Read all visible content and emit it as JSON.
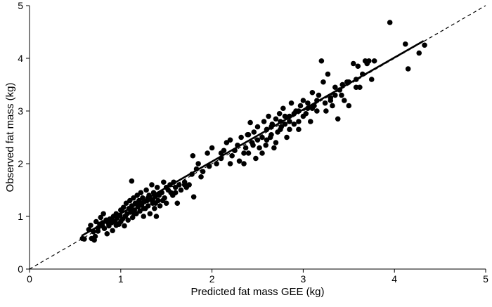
{
  "chart_data": {
    "type": "scatter",
    "title": "",
    "xlabel": "Predicted fat mass GEE (kg)",
    "ylabel": "Observed fat mass (kg)",
    "xlim": [
      0,
      5
    ],
    "ylim": [
      0,
      5
    ],
    "xticks": [
      "0",
      "1",
      "2",
      "3",
      "4",
      "5"
    ],
    "yticks": [
      "0",
      "1",
      "2",
      "3",
      "4",
      "5"
    ],
    "grid": false,
    "legend": "none",
    "point_color": "#000000",
    "reference_line": {
      "style": "dashed",
      "x": [
        0,
        5
      ],
      "y": [
        0,
        5
      ]
    },
    "fit_line": {
      "style": "solid",
      "x": [
        0.57,
        4.32
      ],
      "y": [
        0.63,
        4.33
      ]
    },
    "points": [
      [
        0.58,
        0.58
      ],
      [
        0.6,
        0.57
      ],
      [
        0.65,
        0.75
      ],
      [
        0.67,
        0.83
      ],
      [
        0.68,
        0.58
      ],
      [
        0.7,
        0.71
      ],
      [
        0.71,
        0.55
      ],
      [
        0.72,
        0.62
      ],
      [
        0.73,
        0.9
      ],
      [
        0.75,
        0.78
      ],
      [
        0.77,
        0.85
      ],
      [
        0.78,
        0.98
      ],
      [
        0.8,
        0.88
      ],
      [
        0.81,
        1.05
      ],
      [
        0.82,
        0.77
      ],
      [
        0.84,
        0.93
      ],
      [
        0.85,
        0.67
      ],
      [
        0.87,
        0.82
      ],
      [
        0.88,
        0.95
      ],
      [
        0.9,
        0.88
      ],
      [
        0.91,
        0.73
      ],
      [
        0.92,
        1.0
      ],
      [
        0.94,
        0.9
      ],
      [
        0.95,
        0.83
      ],
      [
        0.96,
        0.97
      ],
      [
        0.98,
        0.85
      ],
      [
        0.99,
        1.02
      ],
      [
        1.0,
        0.9
      ],
      [
        1.01,
        1.1
      ],
      [
        1.02,
        0.95
      ],
      [
        1.03,
        1.17
      ],
      [
        1.04,
        0.82
      ],
      [
        1.05,
        1.0
      ],
      [
        1.06,
        1.25
      ],
      [
        1.07,
        1.05
      ],
      [
        1.08,
        0.93
      ],
      [
        1.09,
        1.15
      ],
      [
        1.1,
        1.3
      ],
      [
        1.11,
        1.08
      ],
      [
        1.12,
        1.2
      ],
      [
        1.12,
        1.67
      ],
      [
        1.13,
        0.98
      ],
      [
        1.14,
        1.35
      ],
      [
        1.15,
        1.12
      ],
      [
        1.16,
        1.25
      ],
      [
        1.17,
        1.05
      ],
      [
        1.18,
        1.4
      ],
      [
        1.19,
        1.18
      ],
      [
        1.2,
        1.3
      ],
      [
        1.21,
        1.1
      ],
      [
        1.22,
        1.45
      ],
      [
        1.23,
        1.22
      ],
      [
        1.24,
        1.35
      ],
      [
        1.25,
        1.0
      ],
      [
        1.26,
        1.28
      ],
      [
        1.27,
        1.15
      ],
      [
        1.28,
        1.5
      ],
      [
        1.29,
        1.3
      ],
      [
        1.3,
        1.2
      ],
      [
        1.31,
        1.4
      ],
      [
        1.32,
        1.05
      ],
      [
        1.33,
        1.32
      ],
      [
        1.34,
        1.6
      ],
      [
        1.35,
        1.25
      ],
      [
        1.36,
        1.45
      ],
      [
        1.37,
        1.15
      ],
      [
        1.38,
        1.38
      ],
      [
        1.39,
        1.0
      ],
      [
        1.4,
        1.55
      ],
      [
        1.41,
        1.3
      ],
      [
        1.43,
        1.2
      ],
      [
        1.45,
        1.45
      ],
      [
        1.47,
        1.65
      ],
      [
        1.48,
        1.35
      ],
      [
        1.5,
        1.25
      ],
      [
        1.52,
        1.5
      ],
      [
        1.54,
        1.6
      ],
      [
        1.55,
        1.45
      ],
      [
        1.57,
        1.4
      ],
      [
        1.58,
        1.65
      ],
      [
        1.6,
        1.55
      ],
      [
        1.62,
        1.25
      ],
      [
        1.64,
        1.6
      ],
      [
        1.66,
        1.5
      ],
      [
        1.7,
        1.65
      ],
      [
        1.72,
        1.55
      ],
      [
        1.75,
        1.6
      ],
      [
        1.78,
        1.8
      ],
      [
        1.79,
        2.15
      ],
      [
        1.8,
        1.37
      ],
      [
        1.83,
        1.9
      ],
      [
        1.88,
        1.75
      ],
      [
        1.9,
        1.85
      ],
      [
        1.95,
        2.2
      ],
      [
        1.97,
        1.95
      ],
      [
        2.0,
        2.3
      ],
      [
        2.05,
        2.0
      ],
      [
        2.1,
        2.1
      ],
      [
        2.13,
        2.25
      ],
      [
        2.16,
        2.4
      ],
      [
        2.2,
        2.45
      ],
      [
        2.22,
        2.15
      ],
      [
        2.25,
        2.25
      ],
      [
        2.28,
        2.35
      ],
      [
        2.3,
        2.05
      ],
      [
        2.32,
        2.5
      ],
      [
        2.35,
        2.0
      ],
      [
        2.37,
        2.3
      ],
      [
        2.39,
        2.55
      ],
      [
        2.4,
        2.2
      ],
      [
        2.42,
        2.78
      ],
      [
        2.44,
        2.4
      ],
      [
        2.46,
        2.6
      ],
      [
        2.48,
        2.1
      ],
      [
        2.5,
        2.7
      ],
      [
        2.52,
        2.3
      ],
      [
        2.55,
        2.5
      ],
      [
        2.57,
        2.8
      ],
      [
        2.59,
        2.35
      ],
      [
        2.6,
        2.65
      ],
      [
        2.62,
        2.9
      ],
      [
        2.64,
        2.5
      ],
      [
        2.66,
        2.75
      ],
      [
        2.68,
        2.3
      ],
      [
        2.7,
        2.85
      ],
      [
        2.72,
        2.6
      ],
      [
        2.74,
        2.95
      ],
      [
        2.76,
        2.7
      ],
      [
        2.78,
        3.05
      ],
      [
        2.8,
        2.75
      ],
      [
        2.82,
        2.5
      ],
      [
        2.85,
        2.9
      ],
      [
        2.87,
        3.15
      ],
      [
        2.9,
        2.75
      ],
      [
        2.92,
        3.0
      ],
      [
        2.95,
        2.65
      ],
      [
        2.97,
        3.1
      ],
      [
        3.0,
        3.2
      ],
      [
        3.03,
        2.95
      ],
      [
        3.05,
        3.05
      ],
      [
        3.08,
        2.8
      ],
      [
        3.1,
        3.35
      ],
      [
        3.12,
        3.1
      ],
      [
        3.15,
        3.2
      ],
      [
        3.17,
        3.3
      ],
      [
        3.2,
        3.95
      ],
      [
        3.22,
        3.55
      ],
      [
        3.24,
        3.15
      ],
      [
        3.27,
        3.7
      ],
      [
        3.3,
        3.2
      ],
      [
        3.32,
        3.1
      ],
      [
        3.35,
        3.3
      ],
      [
        3.38,
        2.85
      ],
      [
        3.4,
        3.4
      ],
      [
        3.43,
        3.5
      ],
      [
        3.45,
        3.2
      ],
      [
        3.48,
        3.55
      ],
      [
        3.5,
        3.1
      ],
      [
        3.55,
        3.9
      ],
      [
        3.58,
        3.6
      ],
      [
        3.62,
        3.45
      ],
      [
        3.65,
        3.7
      ],
      [
        3.68,
        3.95
      ],
      [
        3.72,
        3.95
      ],
      [
        3.75,
        3.6
      ],
      [
        3.78,
        3.95
      ],
      [
        3.95,
        4.68
      ],
      [
        4.12,
        4.27
      ],
      [
        4.15,
        3.8
      ],
      [
        4.27,
        4.1
      ],
      [
        4.33,
        4.25
      ],
      [
        2.4,
        2.55
      ],
      [
        2.5,
        2.45
      ],
      [
        2.6,
        2.45
      ],
      [
        2.65,
        2.55
      ],
      [
        2.7,
        2.4
      ],
      [
        2.75,
        2.8
      ],
      [
        2.8,
        2.9
      ],
      [
        2.85,
        2.8
      ],
      [
        2.9,
        2.95
      ],
      [
        2.95,
        3.0
      ],
      [
        3.0,
        2.9
      ],
      [
        3.05,
        3.15
      ],
      [
        3.1,
        3.05
      ],
      [
        3.25,
        3.0
      ],
      [
        3.35,
        3.45
      ],
      [
        3.42,
        3.3
      ],
      [
        3.5,
        3.55
      ],
      [
        3.58,
        3.45
      ],
      [
        3.6,
        3.85
      ],
      [
        3.7,
        3.9
      ],
      [
        1.1,
        1.15
      ],
      [
        1.15,
        1.05
      ],
      [
        1.2,
        1.22
      ],
      [
        1.25,
        1.15
      ],
      [
        1.3,
        1.35
      ],
      [
        1.35,
        1.32
      ],
      [
        1.38,
        1.25
      ],
      [
        1.42,
        1.4
      ],
      [
        1.46,
        1.3
      ],
      [
        1.5,
        1.55
      ],
      [
        1.6,
        1.45
      ],
      [
        1.7,
        1.6
      ],
      [
        1.0,
        1.12
      ],
      [
        0.95,
        1.05
      ],
      [
        0.9,
        0.95
      ],
      [
        0.85,
        0.9
      ],
      [
        0.8,
        0.82
      ],
      [
        0.75,
        0.72
      ],
      [
        1.85,
        2.0
      ],
      [
        2.1,
        2.2
      ],
      [
        2.2,
        2.0
      ],
      [
        2.35,
        2.2
      ],
      [
        2.45,
        2.35
      ],
      [
        2.55,
        2.2
      ],
      [
        2.65,
        2.7
      ],
      [
        2.75,
        2.65
      ],
      [
        2.85,
        2.65
      ],
      [
        2.95,
        2.8
      ],
      [
        3.15,
        3.0
      ],
      [
        3.3,
        3.25
      ]
    ]
  }
}
